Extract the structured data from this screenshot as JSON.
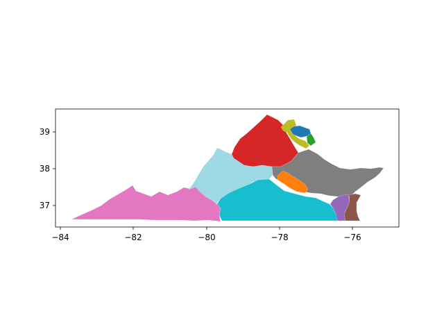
{
  "map": {
    "x_ticks": [
      "−84",
      "−82",
      "−80",
      "−78",
      "−76"
    ],
    "y_ticks": [
      "37",
      "38",
      "39"
    ],
    "district_colors": {
      "southwest": "#e377c2",
      "shenandoah": "#9edae5",
      "southside": "#17becf",
      "north_central": "#d62728",
      "tidewater_north": "#7f7f7f",
      "richmond": "#ff7f0e",
      "norfolk": "#9467bd",
      "virginia_beach": "#8c564b",
      "loudoun_prince_william": "#bcbd22",
      "arlington_fairfax": "#1f77b4",
      "alexandria": "#2ca02c"
    }
  }
}
